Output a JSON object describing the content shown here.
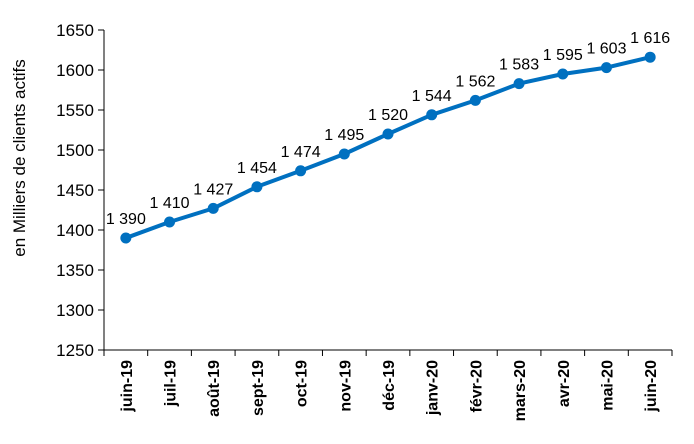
{
  "chart_data": {
    "type": "line",
    "title": "",
    "xlabel": "",
    "ylabel": "en Milliers de clients actifs",
    "ylim": [
      1250,
      1650
    ],
    "yticks": [
      1250,
      1300,
      1350,
      1400,
      1450,
      1500,
      1550,
      1600,
      1650
    ],
    "grid": false,
    "legend": "none",
    "categories": [
      "juin-19",
      "juil-19",
      "août-19",
      "sept-19",
      "oct-19",
      "nov-19",
      "déc-19",
      "janv-20",
      "févr-20",
      "mars-20",
      "avr-20",
      "mai-20",
      "juin-20"
    ],
    "series": [
      {
        "values": [
          1390,
          1410,
          1427,
          1454,
          1474,
          1495,
          1520,
          1544,
          1562,
          1583,
          1595,
          1603,
          1616
        ],
        "labels": [
          "1 390",
          "1 410",
          "1 427",
          "1 454",
          "1 474",
          "1 495",
          "1 520",
          "1 544",
          "1 562",
          "1 583",
          "1 595",
          "1 603",
          "1 616"
        ],
        "color": "#0070C0"
      }
    ]
  }
}
